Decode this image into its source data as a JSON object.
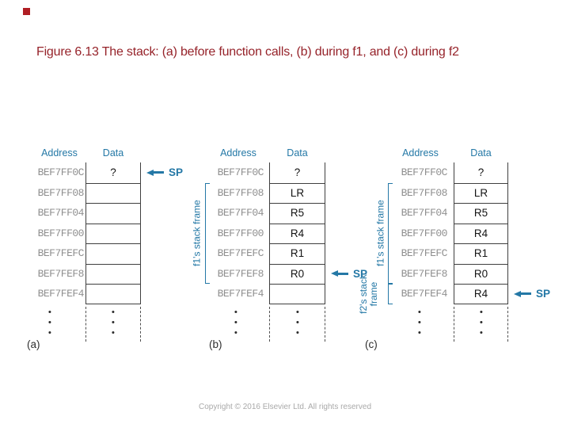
{
  "slide": {
    "title": "Figure 6.13 The stack: (a) before function calls, (b) during f1, and (c) during f2",
    "footer": "Copyright © 2016 Elsevier Ltd. All rights reserved",
    "title_color": "#96232a",
    "accent_color": "#2478a6",
    "address_text_color": "#8f8f8f",
    "bullet_color": "#b01e24"
  },
  "diagrams": [
    {
      "caption": "(a)",
      "address_header": "Address",
      "data_header": "Data",
      "addresses": [
        "BEF7FF0C",
        "BEF7FF08",
        "BEF7FF04",
        "BEF7FF00",
        "BEF7FEFC",
        "BEF7FEF8",
        "BEF7FEF4"
      ],
      "values": [
        "?",
        "",
        "",
        "",
        "",
        "",
        ""
      ],
      "sp_row": 0,
      "sp_label": "SP",
      "brackets": []
    },
    {
      "caption": "(b)",
      "address_header": "Address",
      "data_header": "Data",
      "addresses": [
        "BEF7FF0C",
        "BEF7FF08",
        "BEF7FF04",
        "BEF7FF00",
        "BEF7FEFC",
        "BEF7FEF8",
        "BEF7FEF4"
      ],
      "values": [
        "?",
        "LR",
        "R5",
        "R4",
        "R1",
        "R0",
        ""
      ],
      "sp_row": 5,
      "sp_label": "SP",
      "brackets": [
        {
          "label_lines": [
            "f1's stack frame"
          ],
          "from_row": 1,
          "to_row": 5
        }
      ]
    },
    {
      "caption": "(c)",
      "address_header": "Address",
      "data_header": "Data",
      "addresses": [
        "BEF7FF0C",
        "BEF7FF08",
        "BEF7FF04",
        "BEF7FF00",
        "BEF7FEFC",
        "BEF7FEF8",
        "BEF7FEF4"
      ],
      "values": [
        "?",
        "LR",
        "R5",
        "R4",
        "R1",
        "R0",
        "R4"
      ],
      "sp_row": 6,
      "sp_label": "SP",
      "brackets": [
        {
          "label_lines": [
            "f1's stack frame"
          ],
          "from_row": 1,
          "to_row": 5
        },
        {
          "label_lines": [
            "f2's stack",
            "frame"
          ],
          "from_row": 6,
          "to_row": 6
        }
      ]
    }
  ]
}
